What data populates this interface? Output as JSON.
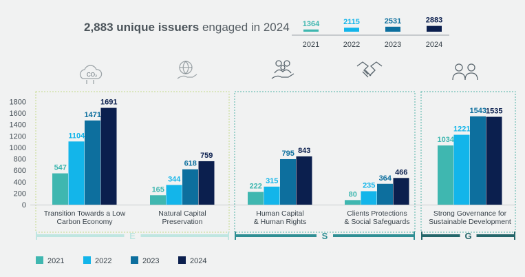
{
  "headline": {
    "bold": "2,883 unique issuers",
    "rest": " engaged in 2024"
  },
  "colors": {
    "2021": "#3fb7b0",
    "2022": "#13b5ea",
    "2023": "#0d6f9e",
    "2024": "#0b1f4e",
    "bg": "#f1f2f2"
  },
  "summary": {
    "years": [
      "2021",
      "2022",
      "2023",
      "2024"
    ],
    "values": [
      1364,
      2115,
      2531,
      2883
    ]
  },
  "pillars": [
    {
      "letter": "E",
      "icons": [
        "co2-cloud-icon",
        "globe-hand-icon"
      ],
      "color": "#bfe6e1"
    },
    {
      "letter": "S",
      "icons": [
        "people-hand-icon",
        "handshake-icon"
      ],
      "color": "#2f8f94"
    },
    {
      "letter": "G",
      "icons": [
        "board-people-icon"
      ],
      "color": "#24666a"
    }
  ],
  "chart_data": {
    "type": "bar",
    "title": "2,883 unique issuers engaged in 2024",
    "categories": [
      [
        "Transition Towards a Low",
        "Carbon Economy"
      ],
      [
        "Natural Capital",
        "Preservation"
      ],
      [
        "Human Capital",
        "& Human Rights"
      ],
      [
        "Clients Protections",
        "& Social Safeguards"
      ],
      [
        "Strong Governance for",
        "Sustainable Development"
      ]
    ],
    "series": [
      {
        "name": "2021",
        "values": [
          547,
          165,
          222,
          80,
          1034
        ]
      },
      {
        "name": "2022",
        "values": [
          1104,
          344,
          315,
          235,
          1221
        ]
      },
      {
        "name": "2023",
        "values": [
          1471,
          618,
          795,
          364,
          1543
        ]
      },
      {
        "name": "2024",
        "values": [
          1691,
          759,
          843,
          466,
          1535
        ]
      }
    ],
    "yticks": [
      "0",
      "200",
      "400",
      "600",
      "800",
      "1000",
      "1200",
      "1400",
      "1600",
      "1800"
    ],
    "ylim": [
      0,
      1800
    ],
    "xlabel": "",
    "ylabel": "",
    "legend": "bottom-left",
    "grid": false
  }
}
